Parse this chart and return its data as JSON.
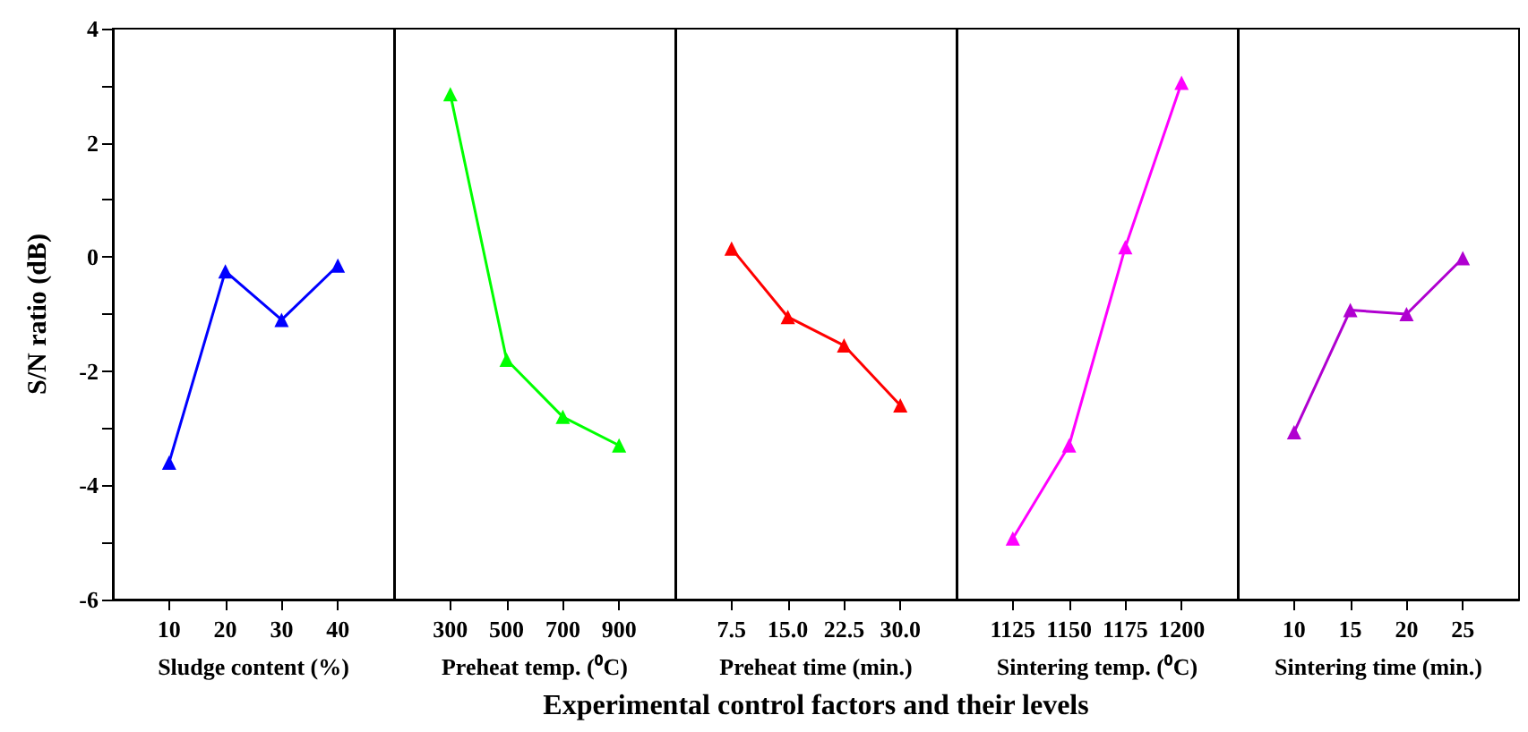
{
  "chart_data": [
    {
      "type": "line",
      "categories": [
        "10",
        "20",
        "30",
        "40"
      ],
      "xlabel": "Sludge content (%)",
      "ylabel": "S/N ratio (dB)",
      "ylim": [
        -6,
        4
      ],
      "yticks": [
        -6,
        {
          "value": -5,
          "label": null
        },
        -4,
        {
          "value": -3,
          "label": null
        },
        -2,
        {
          "value": -1,
          "label": null
        },
        0,
        {
          "value": 1,
          "label": null
        },
        2,
        {
          "value": 3,
          "label": null
        },
        4
      ],
      "marker": "triangle",
      "annotations": [
        "Experimental control factors and their levels"
      ],
      "series": [
        {
          "color": "#0000ff",
          "values": [
            -3.6,
            -0.25,
            -1.1,
            -0.15
          ]
        }
      ]
    },
    {
      "type": "line",
      "categories": [
        "300",
        "500",
        "700",
        "900"
      ],
      "xlabel": "Preheat temp. (⁰C)",
      "ylim": [
        -6,
        4
      ],
      "tick_labels": "x",
      "marker": "triangle",
      "series": [
        {
          "color": "#00ff00",
          "values": [
            2.85,
            -1.8,
            -2.8,
            -3.3
          ]
        }
      ]
    },
    {
      "type": "line",
      "categories": [
        "7.5",
        "15.0",
        "22.5",
        "30.0"
      ],
      "xlabel": "Preheat time (min.)",
      "ylim": [
        -6,
        4
      ],
      "tick_labels": "x",
      "marker": "triangle",
      "series": [
        {
          "color": "#ff0000",
          "values": [
            0.15,
            -1.05,
            -1.55,
            -2.6
          ]
        }
      ]
    },
    {
      "type": "line",
      "categories": [
        "1125",
        "1150",
        "1175",
        "1200"
      ],
      "xlabel": "Sintering temp. (⁰C)",
      "ylim": [
        -6,
        4
      ],
      "tick_labels": "x",
      "marker": "triangle",
      "series": [
        {
          "color": "#ff00ff",
          "values": [
            -4.93,
            -3.3,
            0.17,
            3.05
          ]
        }
      ]
    },
    {
      "type": "line",
      "categories": [
        "10",
        "15",
        "20",
        "25"
      ],
      "xlabel": "Sintering time (min.)",
      "ylim": [
        -6,
        4
      ],
      "tick_labels": "x",
      "marker": "triangle",
      "series": [
        {
          "color": "#b000d0",
          "values": [
            -3.07,
            -0.93,
            -1.0,
            -0.02
          ]
        }
      ]
    }
  ]
}
